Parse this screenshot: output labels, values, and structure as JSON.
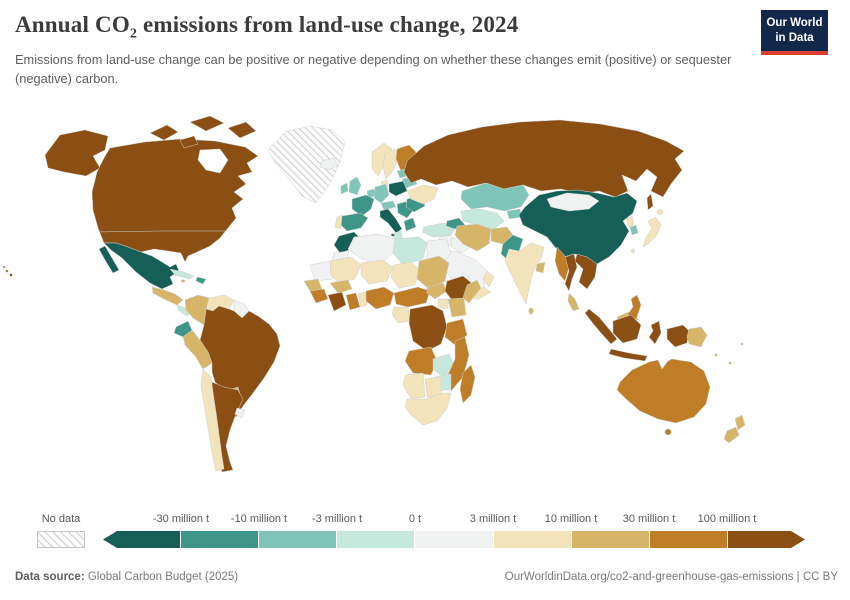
{
  "header": {
    "title_pre": "Annual CO",
    "title_sub": "2",
    "title_post": " emissions from land-use change, 2024",
    "subtitle": "Emissions from land-use change can be positive or negative depending on whether these changes emit (positive) or sequester (negative) carbon.",
    "logo": {
      "line1": "Our World",
      "line2": "in Data",
      "bg_color": "#12284B",
      "accent_color": "#DC3D33"
    }
  },
  "chart_data": {
    "type": "choropleth-map",
    "title": "Annual CO2 emissions from land-use change, 2024",
    "unit": "tonnes of CO2",
    "legend": {
      "no_data_label": "No data",
      "no_data_pattern": "diagonal-hatch",
      "boundaries": [
        "-30 million t",
        "-10 million t",
        "-3 million t",
        "0 t",
        "3 million t",
        "10 million t",
        "30 million t",
        "100 million t"
      ],
      "bin_colors": [
        "#155F56",
        "#3E9689",
        "#7FC6B8",
        "#C5E7DC",
        "#F0F1F1",
        "#F2E3BA",
        "#D7B568",
        "#C07D28",
        "#8B4F13"
      ]
    },
    "palette": {
      "<-30": "#155F56",
      "-30 to -10": "#3E9689",
      "-10 to -3": "#7FC6B8",
      "-3 to 0": "#C5E7DC",
      "0 to 3": "#F0F1F1",
      "3 to 10": "#F2E3BA",
      "10 to 30": "#D7B568",
      "30 to 100": "#C07D28",
      ">100": "#8B4F13",
      "no-data": "hatch"
    },
    "regions": [
      {
        "id": "canada-usa",
        "label": "Canada & United States",
        "bin": ">100"
      },
      {
        "id": "greenland",
        "label": "Greenland",
        "bin": "no-data"
      },
      {
        "id": "iceland",
        "label": "Iceland",
        "bin": "0 to 3"
      },
      {
        "id": "mexico",
        "label": "Mexico",
        "bin": "<-30"
      },
      {
        "id": "central-america",
        "label": "Guatemala & Honduras",
        "bin": "10 to 30"
      },
      {
        "id": "panama-costa-rica",
        "label": "Nicaragua, Costa Rica & Panama",
        "bin": "-3 to 0"
      },
      {
        "id": "cuba",
        "label": "Cuba",
        "bin": "-3 to 0"
      },
      {
        "id": "hispaniola",
        "label": "Haiti & Dominican Republic",
        "bin": "-30 to -10"
      },
      {
        "id": "jamaica",
        "label": "Jamaica",
        "bin": "10 to 30"
      },
      {
        "id": "colombia",
        "label": "Colombia",
        "bin": "10 to 30"
      },
      {
        "id": "venezuela",
        "label": "Venezuela",
        "bin": "3 to 10"
      },
      {
        "id": "guyanas",
        "label": "Guyana & Suriname",
        "bin": "0 to 3"
      },
      {
        "id": "ecuador",
        "label": "Ecuador",
        "bin": "-30 to -10"
      },
      {
        "id": "peru",
        "label": "Peru",
        "bin": "10 to 30"
      },
      {
        "id": "brazil",
        "label": "Brazil & Bolivia",
        "bin": ">100"
      },
      {
        "id": "paraguay",
        "label": "Paraguay",
        "bin": "10 to 30"
      },
      {
        "id": "chile",
        "label": "Chile",
        "bin": "3 to 10"
      },
      {
        "id": "argentina",
        "label": "Argentina",
        "bin": ">100"
      },
      {
        "id": "uruguay",
        "label": "Uruguay",
        "bin": "0 to 3"
      },
      {
        "id": "norway",
        "label": "Norway",
        "bin": "3 to 10"
      },
      {
        "id": "sweden",
        "label": "Sweden",
        "bin": "3 to 10"
      },
      {
        "id": "finland",
        "label": "Finland",
        "bin": "30 to 100"
      },
      {
        "id": "denmark",
        "label": "Denmark",
        "bin": "3 to 10"
      },
      {
        "id": "uk",
        "label": "United Kingdom",
        "bin": "-10 to -3"
      },
      {
        "id": "ireland",
        "label": "Ireland",
        "bin": "-10 to -3"
      },
      {
        "id": "france",
        "label": "France",
        "bin": "-30 to -10"
      },
      {
        "id": "spain",
        "label": "Spain",
        "bin": "-30 to -10"
      },
      {
        "id": "portugal",
        "label": "Portugal",
        "bin": "3 to 10"
      },
      {
        "id": "benelux",
        "label": "Netherlands & Belgium",
        "bin": "-10 to -3"
      },
      {
        "id": "germany",
        "label": "Germany",
        "bin": "-10 to -3"
      },
      {
        "id": "alpine",
        "label": "Switzerland & Austria",
        "bin": "-10 to -3"
      },
      {
        "id": "poland",
        "label": "Poland",
        "bin": "<-30"
      },
      {
        "id": "italy",
        "label": "Italy",
        "bin": "<-30"
      },
      {
        "id": "balkans",
        "label": "Balkans",
        "bin": "-30 to -10"
      },
      {
        "id": "greece",
        "label": "Greece",
        "bin": "-30 to -10"
      },
      {
        "id": "romania-bulgaria",
        "label": "Romania & Bulgaria",
        "bin": "-30 to -10"
      },
      {
        "id": "ukraine",
        "label": "Ukraine",
        "bin": "3 to 10"
      },
      {
        "id": "belarus",
        "label": "Belarus",
        "bin": "-10 to -3"
      },
      {
        "id": "baltics",
        "label": "Baltic states",
        "bin": "-10 to -3"
      },
      {
        "id": "turkey",
        "label": "Turkey",
        "bin": "-3 to 0"
      },
      {
        "id": "russia",
        "label": "Russia",
        "bin": ">100"
      },
      {
        "id": "kazakhstan",
        "label": "Kazakhstan",
        "bin": "-10 to -3"
      },
      {
        "id": "central-asia",
        "label": "Turkmenistan & Uzbekistan",
        "bin": "-3 to 0"
      },
      {
        "id": "kyrgyzstan",
        "label": "Kyrgyzstan & Tajikistan",
        "bin": "-10 to -3"
      },
      {
        "id": "caucasus",
        "label": "Caucasus",
        "bin": "-30 to -10"
      },
      {
        "id": "syria-levant",
        "label": "Syria & Levant",
        "bin": "0 to 3"
      },
      {
        "id": "iraq",
        "label": "Iraq",
        "bin": "0 to 3"
      },
      {
        "id": "saudi-arabia",
        "label": "Saudi Arabia",
        "bin": "0 to 3"
      },
      {
        "id": "yemen",
        "label": "Yemen",
        "bin": "3 to 10"
      },
      {
        "id": "oman",
        "label": "Oman",
        "bin": "3 to 10"
      },
      {
        "id": "iran",
        "label": "Iran",
        "bin": "10 to 30"
      },
      {
        "id": "afghanistan",
        "label": "Afghanistan",
        "bin": "10 to 30"
      },
      {
        "id": "pakistan",
        "label": "Pakistan",
        "bin": "-30 to -10"
      },
      {
        "id": "india",
        "label": "India",
        "bin": "3 to 10"
      },
      {
        "id": "bangladesh",
        "label": "Bangladesh",
        "bin": "10 to 30"
      },
      {
        "id": "sri-lanka",
        "label": "Sri Lanka",
        "bin": "10 to 30"
      },
      {
        "id": "china",
        "label": "China",
        "bin": "<-30"
      },
      {
        "id": "mongolia",
        "label": "Mongolia",
        "bin": "0 to 3"
      },
      {
        "id": "north-korea",
        "label": "North Korea",
        "bin": "3 to 10"
      },
      {
        "id": "south-korea",
        "label": "South Korea",
        "bin": "-10 to -3"
      },
      {
        "id": "japan",
        "label": "Japan",
        "bin": "3 to 10"
      },
      {
        "id": "taiwan",
        "label": "Taiwan",
        "bin": "3 to 10"
      },
      {
        "id": "myanmar",
        "label": "Myanmar",
        "bin": "30 to 100"
      },
      {
        "id": "thailand",
        "label": "Thailand",
        "bin": ">100"
      },
      {
        "id": "indochina",
        "label": "Vietnam, Laos & Cambodia",
        "bin": ">100"
      },
      {
        "id": "malaysia",
        "label": "Malaysia",
        "bin": "10 to 30"
      },
      {
        "id": "philippines",
        "label": "Philippines",
        "bin": "30 to 100"
      },
      {
        "id": "indonesia",
        "label": "Indonesia",
        "bin": ">100"
      },
      {
        "id": "png",
        "label": "Papua New Guinea",
        "bin": "10 to 30"
      },
      {
        "id": "australia",
        "label": "Australia",
        "bin": "30 to 100"
      },
      {
        "id": "new-zealand",
        "label": "New Zealand",
        "bin": "10 to 30"
      },
      {
        "id": "pacific-islands",
        "label": "Pacific islands",
        "bin": "10 to 30"
      },
      {
        "id": "morocco",
        "label": "Morocco",
        "bin": "<-30"
      },
      {
        "id": "western-sahara",
        "label": "Western Sahara",
        "bin": "0 to 3"
      },
      {
        "id": "algeria",
        "label": "Algeria",
        "bin": "0 to 3"
      },
      {
        "id": "tunisia",
        "label": "Tunisia",
        "bin": "-3 to 0"
      },
      {
        "id": "libya",
        "label": "Libya",
        "bin": "-3 to 0"
      },
      {
        "id": "egypt",
        "label": "Egypt",
        "bin": "0 to 3"
      },
      {
        "id": "mauritania",
        "label": "Mauritania",
        "bin": "0 to 3"
      },
      {
        "id": "mali",
        "label": "Mali",
        "bin": "3 to 10"
      },
      {
        "id": "niger",
        "label": "Niger",
        "bin": "3 to 10"
      },
      {
        "id": "chad",
        "label": "Chad",
        "bin": "3 to 10"
      },
      {
        "id": "sudan",
        "label": "Sudan",
        "bin": "10 to 30"
      },
      {
        "id": "south-sudan",
        "label": "South Sudan",
        "bin": "10 to 30"
      },
      {
        "id": "senegal",
        "label": "Senegal",
        "bin": "10 to 30"
      },
      {
        "id": "guinea",
        "label": "Guinea",
        "bin": "30 to 100"
      },
      {
        "id": "ivory-coast",
        "label": "Cote d'Ivoire",
        "bin": ">100"
      },
      {
        "id": "ghana",
        "label": "Ghana",
        "bin": "30 to 100"
      },
      {
        "id": "togo-benin",
        "label": "Togo & Benin",
        "bin": "3 to 10"
      },
      {
        "id": "burkina",
        "label": "Burkina Faso",
        "bin": "10 to 30"
      },
      {
        "id": "nigeria",
        "label": "Nigeria",
        "bin": "30 to 100"
      },
      {
        "id": "cameroon-car",
        "label": "Cameroon & Central African Republic",
        "bin": "30 to 100"
      },
      {
        "id": "gabon-congo",
        "label": "Gabon & Congo",
        "bin": "3 to 10"
      },
      {
        "id": "drc",
        "label": "Democratic Republic of Congo",
        "bin": ">100"
      },
      {
        "id": "uganda",
        "label": "Uganda",
        "bin": "3 to 10"
      },
      {
        "id": "kenya",
        "label": "Kenya",
        "bin": "10 to 30"
      },
      {
        "id": "ethiopia",
        "label": "Ethiopia",
        "bin": ">100"
      },
      {
        "id": "somalia",
        "label": "Somalia",
        "bin": "10 to 30"
      },
      {
        "id": "tanzania",
        "label": "Tanzania",
        "bin": "30 to 100"
      },
      {
        "id": "angola",
        "label": "Angola",
        "bin": "30 to 100"
      },
      {
        "id": "zambia",
        "label": "Zambia",
        "bin": "-3 to 0"
      },
      {
        "id": "mozambique",
        "label": "Mozambique & Malawi",
        "bin": "30 to 100"
      },
      {
        "id": "zimbabwe",
        "label": "Zimbabwe",
        "bin": "-3 to 0"
      },
      {
        "id": "namibia",
        "label": "Namibia",
        "bin": "3 to 10"
      },
      {
        "id": "botswana",
        "label": "Botswana",
        "bin": "3 to 10"
      },
      {
        "id": "south-africa",
        "label": "South Africa",
        "bin": "3 to 10"
      },
      {
        "id": "madagascar",
        "label": "Madagascar",
        "bin": "30 to 100"
      }
    ]
  },
  "footer": {
    "source_label": "Data source:",
    "source_text": " Global Carbon Budget (2025)",
    "attribution": "OurWorldinData.org/co2-and-greenhouse-gas-emissions | CC BY"
  }
}
